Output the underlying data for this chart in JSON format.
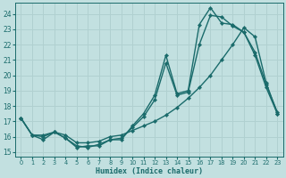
{
  "xlabel": "Humidex (Indice chaleur)",
  "background_color": "#c2e0e0",
  "grid_color": "#b0d0d0",
  "line_color": "#1a6b6b",
  "xlim": [
    -0.5,
    23.5
  ],
  "ylim": [
    14.7,
    24.7
  ],
  "xticks": [
    0,
    1,
    2,
    3,
    4,
    5,
    6,
    7,
    8,
    9,
    10,
    11,
    12,
    13,
    14,
    15,
    16,
    17,
    18,
    19,
    20,
    21,
    22,
    23
  ],
  "yticks": [
    15,
    16,
    17,
    18,
    19,
    20,
    21,
    22,
    23,
    24
  ],
  "series": [
    {
      "x": [
        0,
        1,
        2,
        3,
        4,
        5,
        6,
        7,
        8,
        9,
        10,
        11,
        12,
        13,
        14,
        15,
        16,
        17,
        18,
        19,
        20,
        21,
        22,
        23
      ],
      "y": [
        17.2,
        16.1,
        15.8,
        16.3,
        15.9,
        15.3,
        15.4,
        15.4,
        15.8,
        15.8,
        16.7,
        17.5,
        18.7,
        21.3,
        18.8,
        19.0,
        23.3,
        24.4,
        23.4,
        23.3,
        22.8,
        21.5,
        19.4,
        17.6
      ]
    },
    {
      "x": [
        0,
        1,
        2,
        3,
        4,
        5,
        6,
        7,
        8,
        9,
        10,
        11,
        12,
        13,
        14,
        15,
        16,
        17,
        18,
        19,
        20,
        21,
        22,
        23
      ],
      "y": [
        17.2,
        16.1,
        16.1,
        16.3,
        16.1,
        15.6,
        15.6,
        15.7,
        16.0,
        16.1,
        16.4,
        16.7,
        17.0,
        17.4,
        17.9,
        18.5,
        19.2,
        20.0,
        21.0,
        22.0,
        23.1,
        22.5,
        19.5,
        17.5
      ]
    },
    {
      "x": [
        0,
        1,
        2,
        3,
        4,
        5,
        6,
        7,
        8,
        9,
        10,
        11,
        12,
        13,
        14,
        15,
        16,
        17,
        18,
        19,
        20,
        21,
        22,
        23
      ],
      "y": [
        17.2,
        16.1,
        16.0,
        16.3,
        15.9,
        15.4,
        15.3,
        15.5,
        15.8,
        15.9,
        16.6,
        17.3,
        18.4,
        20.8,
        18.7,
        18.9,
        22.0,
        23.9,
        23.8,
        23.2,
        22.8,
        21.3,
        19.2,
        17.5
      ]
    }
  ]
}
